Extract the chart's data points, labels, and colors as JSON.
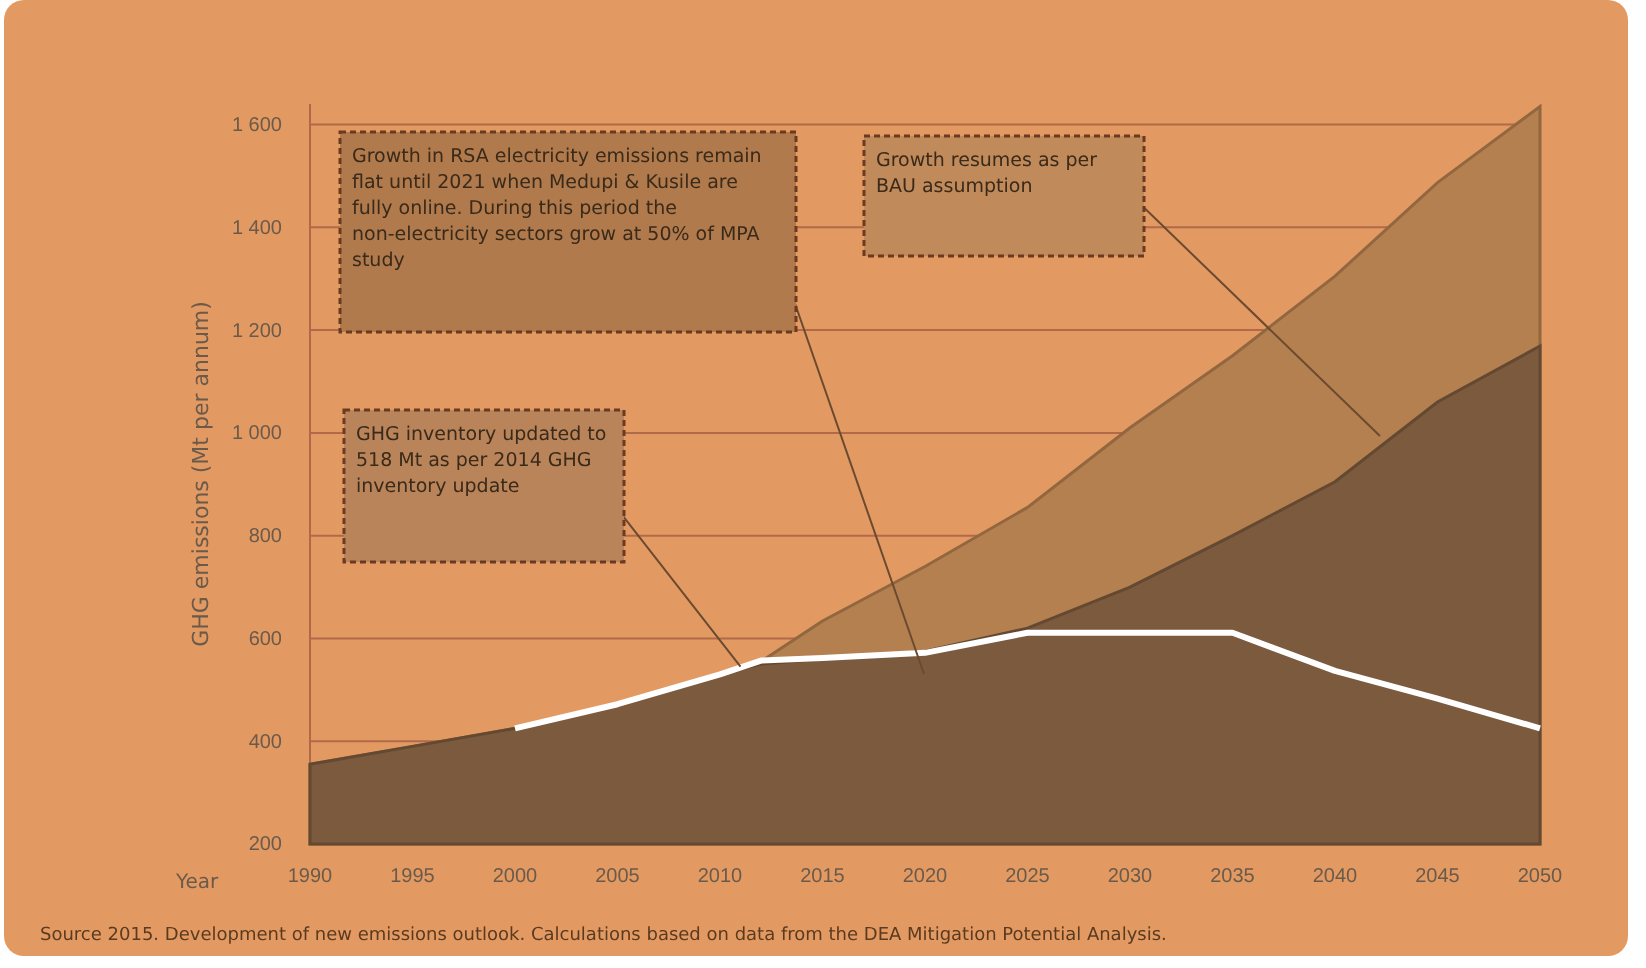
{
  "chart_data": {
    "type": "area",
    "ylabel": "GHG emissions (Mt per annum)",
    "xlabel": "Year",
    "x": [
      1990,
      1995,
      2000,
      2005,
      2010,
      2012,
      2015,
      2020,
      2025,
      2030,
      2035,
      2040,
      2045,
      2050
    ],
    "series": [
      {
        "color": "#b5804f",
        "values": [
          355,
          390,
          425,
          472,
          530,
          555,
          634,
          740,
          855,
          1010,
          1150,
          1305,
          1487,
          1635
        ]
      },
      {
        "color": "#7c5a3e",
        "values": [
          355,
          390,
          425,
          472,
          530,
          550,
          560,
          575,
          620,
          700,
          800,
          905,
          1060,
          1169
        ]
      },
      {
        "type": "line",
        "color": "#ffffff",
        "values": [
          null,
          null,
          425,
          472,
          530,
          557,
          562,
          572,
          611,
          611,
          611,
          537,
          483,
          425
        ]
      }
    ],
    "xlim": [
      1990,
      2050
    ],
    "ylim": [
      200,
      1640
    ],
    "xticks": [
      1990,
      1995,
      2000,
      2005,
      2010,
      2015,
      2020,
      2025,
      2030,
      2035,
      2040,
      2045,
      2050
    ],
    "yticks": [
      200,
      400,
      600,
      800,
      {
        "value": 1000,
        "label": "1 000"
      },
      {
        "value": 1200,
        "label": "1 200"
      },
      {
        "value": 1400,
        "label": "1 400"
      },
      {
        "value": 1600,
        "label": "1 600"
      }
    ],
    "grid": "y",
    "annotations": [
      {
        "text": "GHG inventory updated to 518 Mt as per 2014 GHG inventory update",
        "x": 2011,
        "y": 545
      },
      "Growth in RSA electricity emissions remain flat until 2021 when Medupi & Kusile are fully online. During this period the non-electricity sectors grow at 50% of MPA study",
      "Growth resumes as per BAU assumption",
      "Source 2015. Development of new emissions outlook. Calculations based on data from the DEA Mitigation Potential Analysis."
    ]
  }
}
